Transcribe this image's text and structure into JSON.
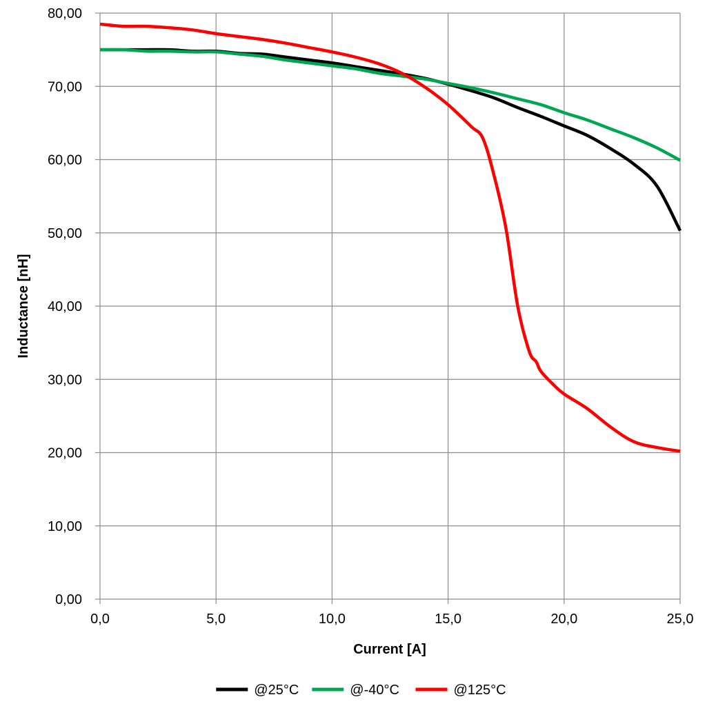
{
  "chart_data": {
    "type": "line",
    "title": "",
    "xlabel": "Current [A]",
    "ylabel": "Inductance [nH]",
    "xlim": [
      0,
      25
    ],
    "ylim": [
      0,
      80
    ],
    "x_ticks": [
      0,
      5,
      10,
      15,
      20,
      25
    ],
    "x_tick_labels": [
      "0,0",
      "5,0",
      "10,0",
      "15,0",
      "20,0",
      "25,0"
    ],
    "y_ticks": [
      0,
      10,
      20,
      30,
      40,
      50,
      60,
      70,
      80
    ],
    "y_tick_labels": [
      "0,00",
      "10,00",
      "20,00",
      "30,00",
      "40,00",
      "50,00",
      "60,00",
      "70,00",
      "80,00"
    ],
    "grid": true,
    "legend_position": "bottom",
    "series": [
      {
        "name": "@25°C",
        "color": "#000000",
        "x": [
          0,
          1,
          2,
          3,
          4,
          5,
          6,
          7,
          8,
          9,
          10,
          11,
          12,
          13,
          14,
          15,
          16,
          17,
          18,
          19,
          20,
          21,
          22,
          23,
          24,
          25
        ],
        "y": [
          75.0,
          75.0,
          75.0,
          75.0,
          74.8,
          74.8,
          74.5,
          74.4,
          74.0,
          73.6,
          73.2,
          72.7,
          72.2,
          71.7,
          71.1,
          70.3,
          69.4,
          68.4,
          67.1,
          65.9,
          64.6,
          63.3,
          61.5,
          59.4,
          56.4,
          50.3
        ]
      },
      {
        "name": "@-40°C",
        "color": "#00a651",
        "x": [
          0,
          1,
          2,
          3,
          4,
          5,
          6,
          7,
          8,
          9,
          10,
          11,
          12,
          13,
          14,
          15,
          16,
          17,
          18,
          19,
          20,
          21,
          22,
          23,
          24,
          25
        ],
        "y": [
          75.0,
          75.0,
          74.8,
          74.8,
          74.7,
          74.7,
          74.4,
          74.1,
          73.6,
          73.2,
          72.8,
          72.4,
          71.8,
          71.4,
          71.0,
          70.4,
          69.8,
          69.1,
          68.3,
          67.5,
          66.4,
          65.4,
          64.2,
          63.0,
          61.6,
          59.9
        ]
      },
      {
        "name": "@125°C",
        "color": "#ff0000",
        "x": [
          0,
          1,
          2,
          3,
          4,
          5,
          6,
          7,
          8,
          9,
          10,
          11,
          12,
          13,
          14,
          15,
          16,
          16.5,
          17,
          17.5,
          18,
          18.5,
          18.8,
          19,
          19.5,
          20,
          21,
          22,
          23,
          24,
          25
        ],
        "y": [
          78.5,
          78.2,
          78.2,
          78.0,
          77.7,
          77.2,
          76.8,
          76.4,
          75.9,
          75.3,
          74.7,
          74.0,
          73.1,
          71.8,
          69.9,
          67.5,
          64.5,
          62.9,
          57.6,
          50.5,
          40.0,
          33.8,
          32.4,
          31.1,
          29.4,
          28.0,
          26.0,
          23.5,
          21.5,
          20.7,
          20.2
        ]
      }
    ]
  }
}
